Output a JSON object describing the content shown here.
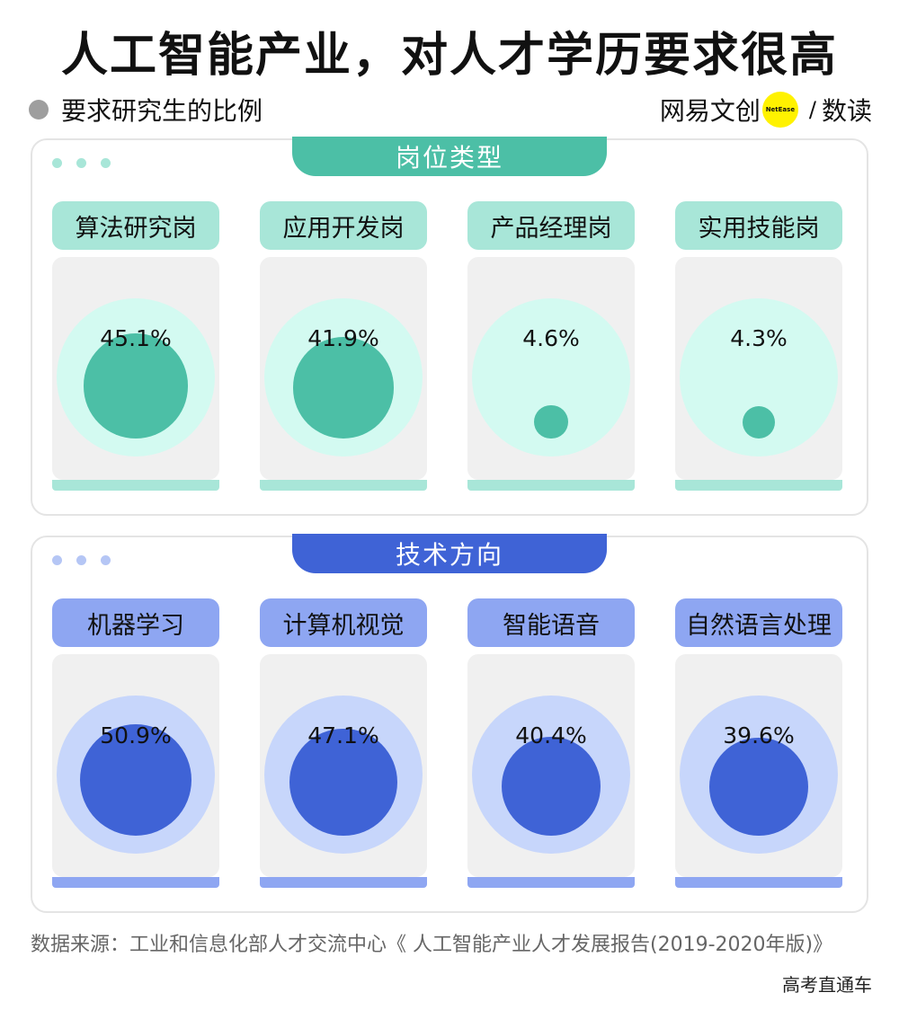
{
  "header": {
    "title": "人工智能产业，对人才学历要求很高",
    "subtitle": "要求研究生的比例",
    "brand_left": "网易文创",
    "brand_badge": "NetEase",
    "brand_slash": "/",
    "brand_right": "数读"
  },
  "chart_data": [
    {
      "type": "bubble",
      "title": "岗位类型",
      "unit": "%",
      "colors": {
        "accent": "#4cbfa6",
        "light": "#d3faf1",
        "label_bg": "#a8e6d8",
        "strip": "#a8e6d8",
        "dots": "#a8e6d8"
      },
      "categories": [
        "算法研究岗",
        "应用开发岗",
        "产品经理岗",
        "实用技能岗"
      ],
      "values": [
        45.1,
        41.9,
        4.6,
        4.3
      ],
      "labels": [
        "45.1%",
        "41.9%",
        "4.6%",
        "4.3%"
      ]
    },
    {
      "type": "bubble",
      "title": "技术方向",
      "unit": "%",
      "colors": {
        "accent": "#3f63d6",
        "light": "#c7d6fb",
        "label_bg": "#8ea6f2",
        "strip": "#8ea6f2",
        "dots": "#b5c6f5"
      },
      "categories": [
        "机器学习",
        "计算机视觉",
        "智能语音",
        "自然语言处理"
      ],
      "values": [
        50.9,
        47.1,
        40.4,
        39.6
      ],
      "labels": [
        "50.9%",
        "47.1%",
        "40.4%",
        "39.6%"
      ]
    }
  ],
  "footer": {
    "source": "数据来源：工业和信息化部人才交流中心《 人工智能产业人才发展报告(2019-2020年版)》",
    "watermark": "高考直通车"
  }
}
